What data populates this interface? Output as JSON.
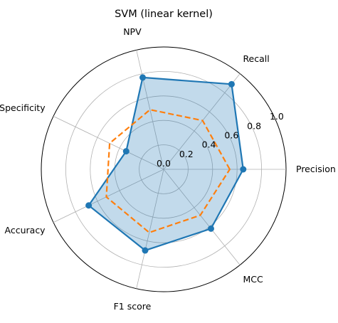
{
  "chart_data": {
    "type": "radar",
    "title": "SVM (linear kernel)",
    "axes": [
      "Precision",
      "Recall",
      "NPV",
      "Specificity",
      "Accuracy",
      "F1 score",
      "MCC"
    ],
    "rlim": [
      0,
      1.0
    ],
    "rticks": [
      "0.0",
      "0.2",
      "0.4",
      "0.6",
      "0.8",
      "1.0"
    ],
    "grid": true,
    "series": [
      {
        "values": [
          0.65,
          0.89,
          0.77,
          0.34,
          0.68,
          0.68,
          0.62
        ],
        "color": "#1f77b4",
        "line_style": "solid",
        "marker": "circle",
        "filled": true,
        "fill_color": "#1f77b4"
      },
      {
        "values": [
          0.54,
          0.51,
          0.5,
          0.49,
          0.52,
          0.53,
          0.48
        ],
        "color": "#ff7f0e",
        "line_style": "dashed",
        "marker": "none",
        "filled": false
      }
    ]
  }
}
